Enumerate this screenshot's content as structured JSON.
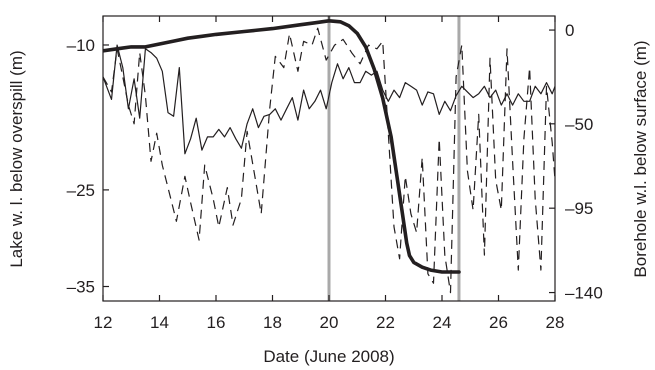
{
  "chart_data": {
    "type": "line",
    "xlabel": "Date (June 2008)",
    "ylabel_left": "Lake w. l. below overspill (m)",
    "ylabel_right": "Borehole w.l. below surface (m)",
    "xlim": [
      12,
      28
    ],
    "ylim_left": [
      -36.5,
      -7
    ],
    "ylim_right": [
      -144.5,
      7.5
    ],
    "xticks": [
      12,
      14,
      16,
      18,
      20,
      22,
      24,
      26,
      28
    ],
    "xtick_labels": [
      "12",
      "14",
      "16",
      "18",
      "20",
      "22",
      "24",
      "26",
      "28"
    ],
    "yticks_left": [
      -10,
      -25,
      -35
    ],
    "ytick_labels_left": [
      "–10",
      "–25",
      "–35"
    ],
    "yticks_right": [
      0,
      -50,
      -95,
      -140
    ],
    "ytick_labels_right": [
      "0",
      "–50",
      "–95",
      "–140"
    ],
    "vertical_markers": [
      20.0,
      24.6
    ],
    "marker_color": "#a9a9a9",
    "series": [
      {
        "axis": "left",
        "style": "thick",
        "x": [
          12.0,
          12.5,
          13.0,
          13.5,
          14.0,
          14.5,
          15.0,
          15.5,
          16.0,
          17.0,
          18.0,
          19.0,
          19.5,
          20.0,
          20.4,
          20.7,
          21.0,
          21.3,
          21.6,
          21.9,
          22.2,
          22.4,
          22.6,
          22.75,
          22.85,
          23.0,
          23.3,
          23.6,
          24.0,
          24.2,
          24.4,
          24.6
        ],
        "y": [
          -10.6,
          -10.4,
          -10.2,
          -10.2,
          -9.9,
          -9.6,
          -9.3,
          -9.1,
          -8.9,
          -8.6,
          -8.3,
          -7.9,
          -7.7,
          -7.5,
          -7.6,
          -8.0,
          -8.8,
          -10.2,
          -12.5,
          -15.5,
          -19.5,
          -23.5,
          -27.5,
          -30.5,
          -31.8,
          -32.5,
          -33.0,
          -33.3,
          -33.5,
          -33.5,
          -33.5,
          -33.5
        ]
      },
      {
        "axis": "right",
        "style": "thin",
        "x": [
          12.0,
          12.3,
          12.5,
          12.7,
          12.9,
          13.1,
          13.3,
          13.5,
          13.7,
          13.9,
          14.1,
          14.3,
          14.5,
          14.7,
          14.9,
          15.1,
          15.3,
          15.5,
          15.7,
          15.9,
          16.1,
          16.3,
          16.5,
          16.7,
          16.9,
          17.1,
          17.3,
          17.5,
          17.7,
          17.9,
          18.1,
          18.3,
          18.5,
          18.7,
          18.9,
          19.1,
          19.3,
          19.5,
          19.7,
          19.9,
          20.1,
          20.3,
          20.5,
          20.7,
          20.9,
          21.1,
          21.3,
          21.5,
          21.7,
          21.9,
          22.1,
          22.3,
          22.5,
          22.7,
          22.9,
          23.1,
          23.3,
          23.5,
          23.7,
          23.9,
          24.1,
          24.3,
          24.5,
          24.7,
          24.9,
          25.1,
          25.3,
          25.5,
          25.7,
          25.9,
          26.1,
          26.3,
          26.5,
          26.7,
          26.9,
          27.1,
          27.3,
          27.5,
          27.7,
          27.9,
          28.0
        ],
        "y": [
          -25,
          -37,
          -8,
          -20,
          -42,
          -26,
          -47,
          -10,
          -12,
          -15,
          -22,
          -44,
          -46,
          -20,
          -66,
          -58,
          -47,
          -64,
          -57,
          -57,
          -53,
          -57,
          -52,
          -58,
          -63,
          -50,
          -42,
          -52,
          -46,
          -45,
          -42,
          -48,
          -42,
          -36,
          -48,
          -32,
          -42,
          -38,
          -32,
          -42,
          -28,
          -18,
          -26,
          -20,
          -28,
          -28,
          -22,
          -24,
          -22,
          -32,
          -38,
          -32,
          -36,
          -28,
          -30,
          -32,
          -40,
          -33,
          -34,
          -45,
          -38,
          -43,
          -35,
          -30,
          -33,
          -36,
          -34,
          -30,
          -36,
          -32,
          -40,
          -34,
          -40,
          -34,
          -38,
          -38,
          -30,
          -34,
          -28,
          -34,
          -30
        ]
      },
      {
        "axis": "right",
        "style": "dashed",
        "x": [
          12.0,
          12.3,
          12.5,
          12.7,
          12.9,
          13.1,
          13.3,
          13.5,
          13.7,
          13.9,
          14.1,
          14.4,
          14.6,
          14.9,
          15.1,
          15.4,
          15.6,
          15.9,
          16.1,
          16.4,
          16.6,
          16.9,
          17.1,
          17.4,
          17.6,
          17.9,
          18.1,
          18.4,
          18.6,
          18.9,
          19.1,
          19.4,
          19.6,
          19.9,
          20.2,
          20.5,
          20.8,
          21.1,
          21.4,
          21.7,
          21.9,
          22.1,
          22.3,
          22.5,
          22.7,
          22.9,
          23.1,
          23.3,
          23.5,
          23.7,
          23.9,
          24.1,
          24.3,
          24.5,
          24.7,
          24.9,
          25.1,
          25.3,
          25.5,
          25.7,
          25.9,
          26.1,
          26.3,
          26.5,
          26.7,
          26.9,
          27.1,
          27.3,
          27.5,
          27.7,
          27.9,
          28.0
        ],
        "y": [
          -25,
          -33,
          -10,
          -25,
          -40,
          -50,
          -12,
          -35,
          -70,
          -55,
          -72,
          -90,
          -102,
          -78,
          -92,
          -112,
          -72,
          -90,
          -105,
          -84,
          -104,
          -90,
          -54,
          -80,
          -98,
          -42,
          -14,
          -20,
          -2,
          -22,
          -6,
          -8,
          1,
          -16,
          -8,
          -5,
          -12,
          -18,
          -8,
          -10,
          -6,
          -55,
          -105,
          -122,
          -78,
          -98,
          -108,
          -68,
          -130,
          -135,
          -58,
          -120,
          -140,
          -25,
          -8,
          -75,
          -96,
          -45,
          -120,
          -15,
          -80,
          -96,
          -10,
          -70,
          -128,
          -58,
          -20,
          -90,
          -128,
          -30,
          -60,
          -80
        ]
      }
    ]
  }
}
